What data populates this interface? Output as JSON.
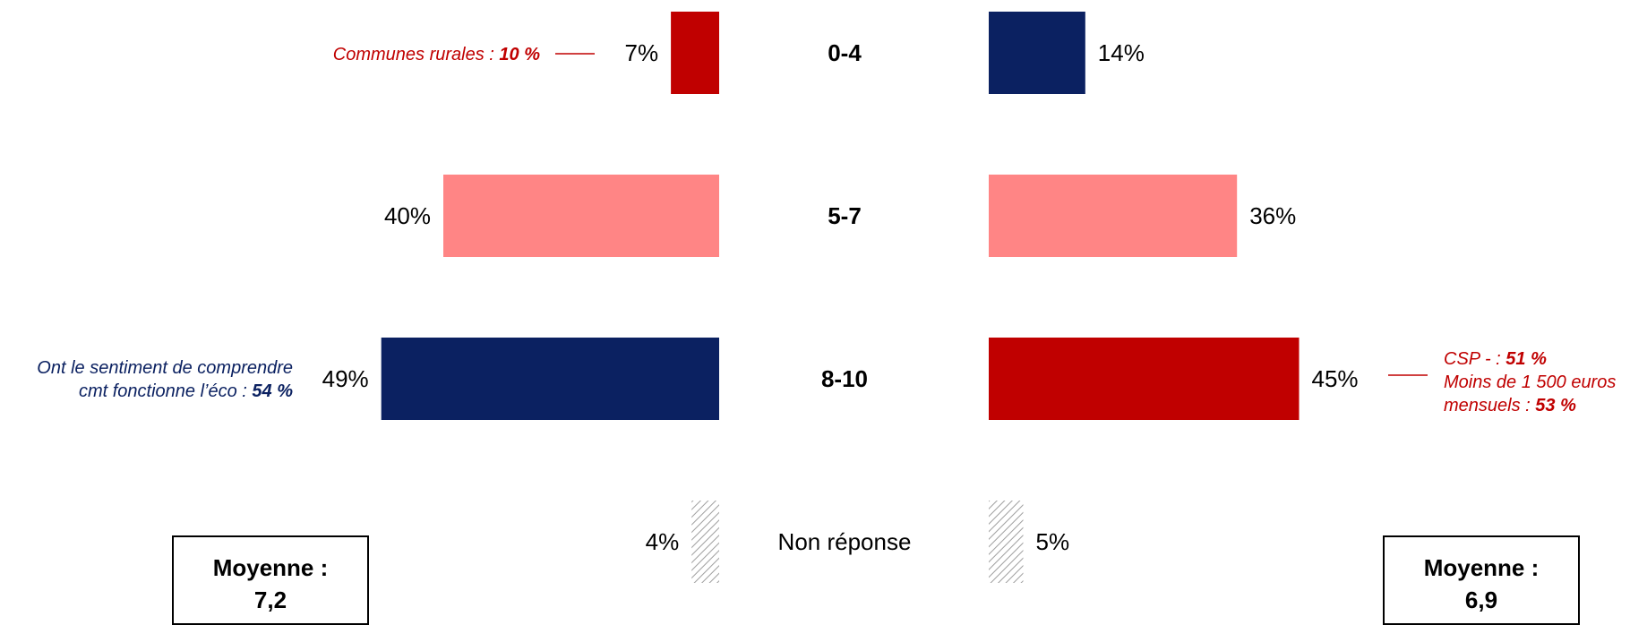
{
  "chart_data": {
    "type": "bar",
    "orientation": "horizontal-butterfly",
    "categories": [
      "0-4",
      "5-7",
      "8-10",
      "Non réponse"
    ],
    "series": [
      {
        "values": [
          7,
          40,
          49,
          4
        ],
        "labels": [
          "7%",
          "40%",
          "49%",
          "4%"
        ],
        "colors": [
          "#c00000",
          "#ff8585",
          "#0b2161",
          "hatch"
        ]
      },
      {
        "values": [
          14,
          36,
          45,
          5
        ],
        "labels": [
          "14%",
          "36%",
          "45%",
          "5%"
        ],
        "colors": [
          "#0b2161",
          "#ff8585",
          "#c00000",
          "hatch"
        ]
      }
    ]
  },
  "annotations": {
    "left_04": {
      "text": "Communes rurales : ",
      "value": "10 %"
    },
    "left_810_line1": "Ont le sentiment de comprendre",
    "left_810_line2": "cmt fonctionne l’éco : ",
    "left_810_value": "54 %",
    "right_810_line1": "CSP - : ",
    "right_810_value1": "51 %",
    "right_810_line2": "Moins de 1 500 euros",
    "right_810_line3": "mensuels : ",
    "right_810_value3": "53 %"
  },
  "averages": {
    "left": {
      "label": "Moyenne :",
      "value": "7,2"
    },
    "right": {
      "label": "Moyenne :",
      "value": "6,9"
    }
  },
  "colors": {
    "dark_red": "#c00000",
    "pink": "#ff8585",
    "navy": "#0b2161",
    "hatch": "#a0a0a0"
  }
}
